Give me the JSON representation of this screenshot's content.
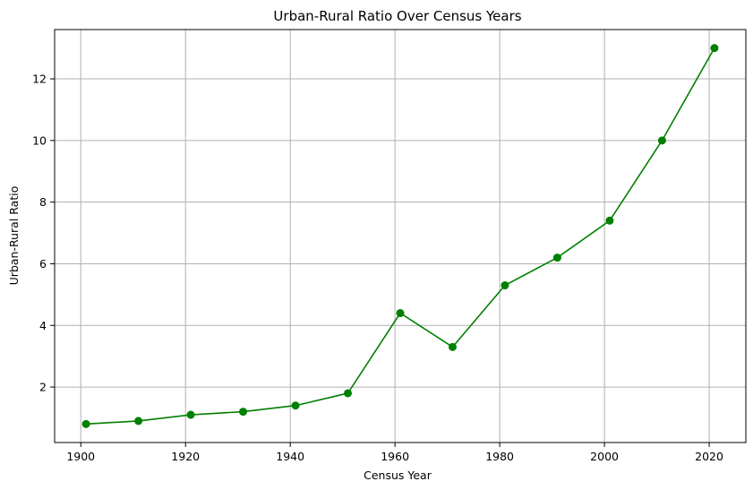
{
  "chart_data": {
    "type": "line",
    "title": "Urban-Rural Ratio Over Census Years",
    "xlabel": "Census Year",
    "ylabel": "Urban-Rural Ratio",
    "xlim": [
      1895,
      2027
    ],
    "ylim": [
      0.2,
      13.6
    ],
    "xticks": [
      1900,
      1920,
      1940,
      1960,
      1980,
      2000,
      2020
    ],
    "yticks": [
      2,
      4,
      6,
      8,
      10,
      12
    ],
    "grid": true,
    "line_color": "#008000",
    "marker": "circle",
    "series": [
      {
        "x": [
          1901,
          1911,
          1921,
          1931,
          1941,
          1951,
          1961,
          1971,
          1981,
          1991,
          2001,
          2011,
          2021
        ],
        "values": [
          0.8,
          0.9,
          1.1,
          1.2,
          1.4,
          1.8,
          4.4,
          3.3,
          5.3,
          6.2,
          7.4,
          10.0,
          13.0
        ]
      }
    ]
  }
}
